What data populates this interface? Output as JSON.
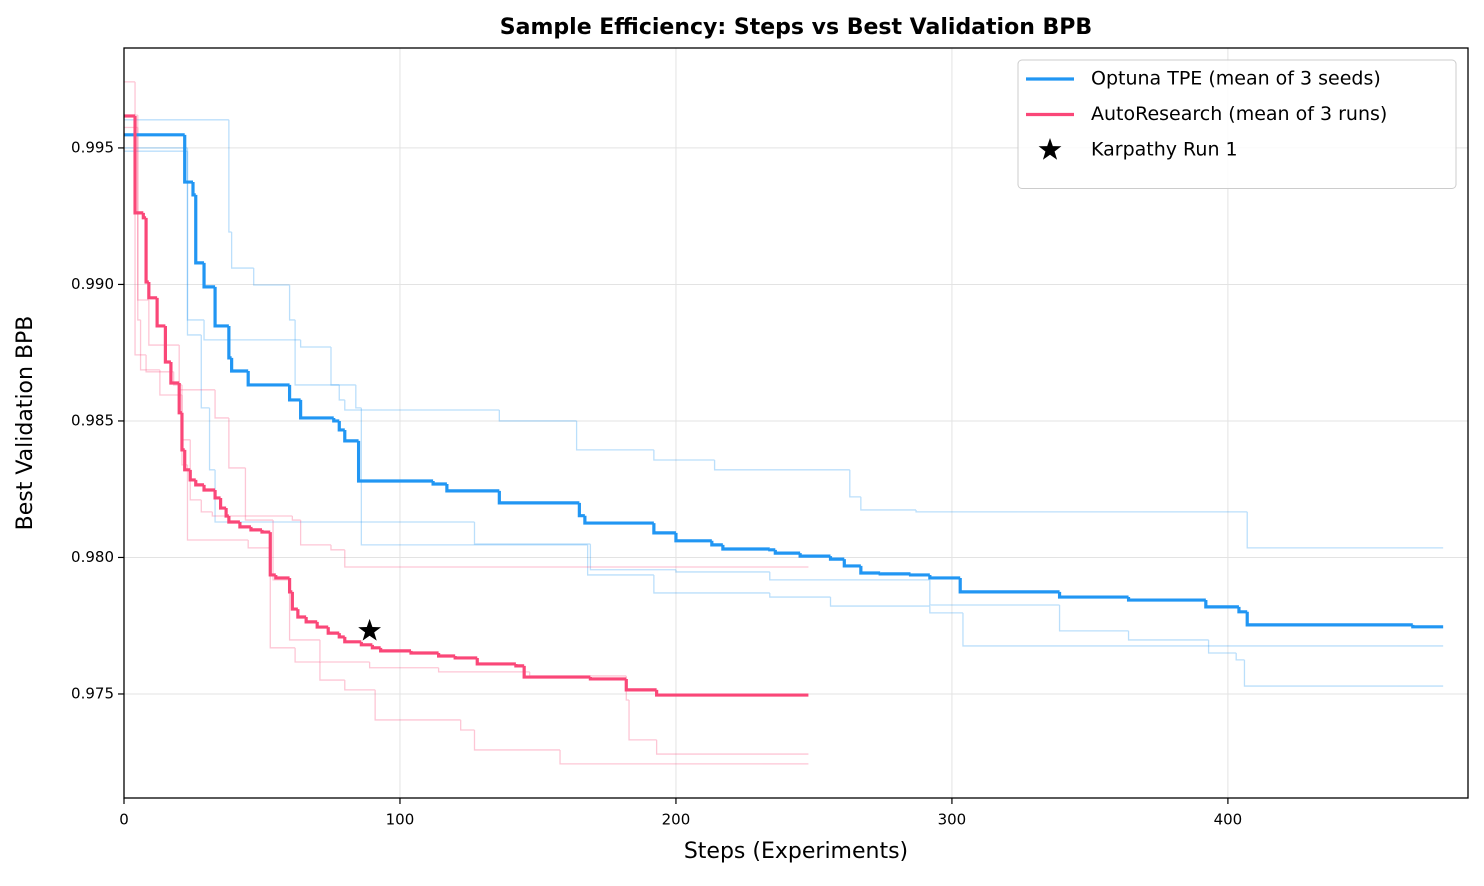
{
  "chart_data": {
    "type": "line",
    "title": "Sample Efficiency: Steps vs Best Validation BPB",
    "xlabel": "Steps (Experiments)",
    "ylabel": "Best Validation BPB",
    "xlim": [
      0,
      487
    ],
    "ylim": [
      0.97119,
      0.99866
    ],
    "xticks": [
      0,
      100,
      200,
      300,
      400
    ],
    "yticks": [
      0.975,
      {
        "value": 0.98,
        "label": "0.980"
      },
      0.985,
      {
        "value": 0.99,
        "label": "0.990"
      },
      0.995
    ],
    "grid": true,
    "legend": "upper right",
    "series": [
      {
        "name": "Optuna TPE (mean of 3 seeds)",
        "color": "#2196f3",
        "x": [
          0,
          22,
          25,
          26,
          29,
          33,
          38,
          39,
          45,
          60,
          64,
          76,
          78,
          80,
          85,
          112,
          117,
          136,
          165,
          167,
          192,
          200,
          213,
          217,
          234,
          236,
          245,
          256,
          261,
          267,
          274,
          285,
          292,
          303,
          339,
          364,
          392,
          404,
          407,
          467,
          478
        ],
        "values": [
          0.99548,
          0.99375,
          0.99328,
          0.99079,
          0.98991,
          0.98848,
          0.98731,
          0.98683,
          0.98632,
          0.98577,
          0.98511,
          0.985,
          0.98467,
          0.98427,
          0.9828,
          0.98269,
          0.98244,
          0.982,
          0.98153,
          0.98126,
          0.9809,
          0.98061,
          0.98046,
          0.98031,
          0.98028,
          0.98016,
          0.98005,
          0.97994,
          0.97969,
          0.97943,
          0.9794,
          0.97936,
          0.97925,
          0.97874,
          0.97855,
          0.97844,
          0.97819,
          0.97801,
          0.97753,
          0.97746,
          0.97746
        ]
      },
      {
        "name": "AutoResearch (mean of 3 runs)",
        "color": "#fa4778",
        "x": [
          0,
          4,
          7,
          8,
          9,
          12,
          15,
          17,
          20,
          21,
          22,
          24,
          26,
          29,
          33,
          35,
          37,
          38,
          42,
          46,
          50,
          53,
          55,
          60,
          61,
          63,
          66,
          70,
          74,
          78,
          80,
          86,
          90,
          93,
          104,
          114,
          120,
          128,
          142,
          145,
          169,
          182,
          193,
          248
        ],
        "values": [
          0.99617,
          0.99262,
          0.99244,
          0.99009,
          0.98951,
          0.98848,
          0.98716,
          0.98639,
          0.9853,
          0.98394,
          0.98321,
          0.98284,
          0.98266,
          0.98247,
          0.98218,
          0.98181,
          0.98152,
          0.9813,
          0.98112,
          0.98101,
          0.98093,
          0.97936,
          0.97925,
          0.97874,
          0.97811,
          0.97782,
          0.97764,
          0.97745,
          0.97723,
          0.97709,
          0.97691,
          0.9768,
          0.97669,
          0.97658,
          0.9765,
          0.97639,
          0.97632,
          0.9761,
          0.97603,
          0.97562,
          0.97555,
          0.97515,
          0.97496,
          0.97496
        ]
      },
      {
        "name": "Karpathy Run 1",
        "type": "scatter",
        "marker": "star",
        "color": "#000000",
        "x": [
          89
        ],
        "values": [
          0.97731
        ]
      },
      {
        "color": "#2196f3",
        "alpha": 0.3,
        "x": [
          0,
          38,
          39,
          47,
          60,
          62,
          78,
          80,
          136,
          164,
          192,
          214,
          263,
          267,
          287,
          407,
          478
        ],
        "values": [
          0.99603,
          0.99192,
          0.9906,
          0.98998,
          0.9887,
          0.98632,
          0.98577,
          0.9854,
          0.985,
          0.98394,
          0.98357,
          0.98321,
          0.98222,
          0.98174,
          0.98167,
          0.98035,
          0.98035
        ]
      },
      {
        "color": "#2196f3",
        "alpha": 0.3,
        "x": [
          0,
          23,
          29,
          64,
          75,
          84,
          86,
          168,
          192,
          234,
          256,
          292,
          304,
          478
        ],
        "values": [
          0.995,
          0.9887,
          0.98797,
          0.98771,
          0.98632,
          0.98548,
          0.98046,
          0.97936,
          0.9787,
          0.97855,
          0.97822,
          0.97797,
          0.97676,
          0.97676
        ]
      },
      {
        "color": "#2196f3",
        "alpha": 0.3,
        "x": [
          0,
          23,
          28,
          31,
          33,
          127,
          169,
          200,
          234,
          292,
          339,
          364,
          393,
          403,
          406,
          478
        ],
        "values": [
          0.99488,
          0.98815,
          0.98548,
          0.98321,
          0.9813,
          0.98049,
          0.97955,
          0.97947,
          0.97918,
          0.97826,
          0.97731,
          0.97698,
          0.9765,
          0.97625,
          0.97529,
          0.97529
        ]
      },
      {
        "color": "#fa4778",
        "alpha": 0.3,
        "x": [
          0,
          4,
          8,
          18,
          21,
          24,
          28,
          32,
          61,
          64,
          75,
          80,
          248
        ],
        "values": [
          0.99742,
          0.98742,
          0.9868,
          0.98632,
          0.98431,
          0.98211,
          0.98167,
          0.98152,
          0.98137,
          0.98046,
          0.98028,
          0.97965,
          0.97965
        ]
      },
      {
        "color": "#fa4778",
        "alpha": 0.3,
        "x": [
          0,
          5,
          9,
          20,
          33,
          38,
          44,
          54,
          60,
          71,
          89,
          114,
          147,
          182,
          183,
          193,
          248
        ],
        "values": [
          0.9962,
          0.98943,
          0.98778,
          0.98614,
          0.98511,
          0.98328,
          0.98137,
          0.97918,
          0.97698,
          0.97617,
          0.97596,
          0.97581,
          0.97566,
          0.97478,
          0.97332,
          0.9728,
          0.9728
        ]
      },
      {
        "color": "#fa4778",
        "alpha": 0.3,
        "x": [
          0,
          5,
          6,
          13,
          21,
          23,
          45,
          53,
          62,
          71,
          80,
          91,
          122,
          127,
          158,
          248
        ],
        "values": [
          0.99575,
          0.9887,
          0.98687,
          0.98595,
          0.98339,
          0.98064,
          0.98035,
          0.97669,
          0.97617,
          0.97551,
          0.97515,
          0.97405,
          0.97368,
          0.97295,
          0.97244,
          0.97244
        ]
      }
    ]
  }
}
